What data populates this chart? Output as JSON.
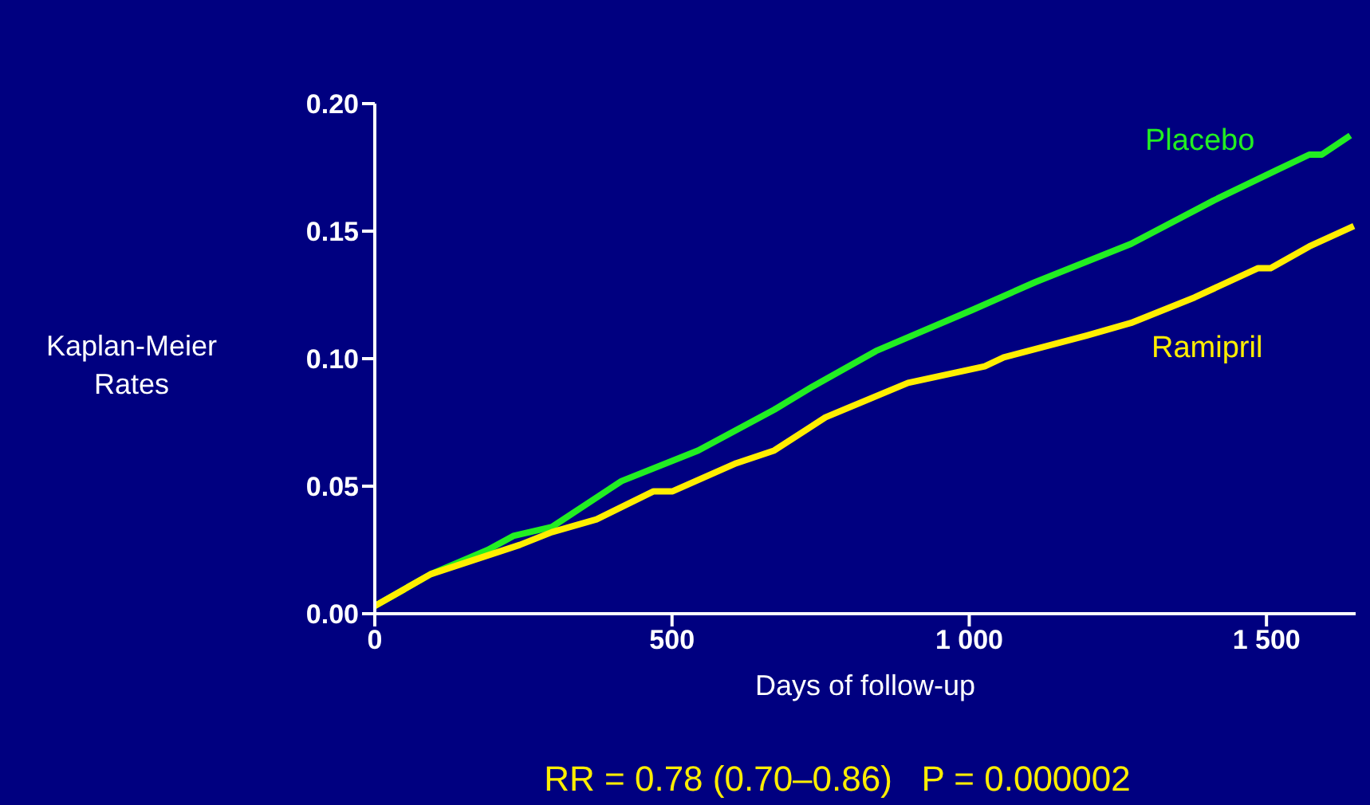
{
  "chart_data": {
    "type": "line",
    "xlabel": "Days of follow-up",
    "ylabel": "Kaplan-Meier Rates",
    "annotations": [
      "RR = 0.78 (0.70–0.86)   P = 0.000002"
    ],
    "xlim": [
      0,
      1650
    ],
    "xticks": [
      0,
      500,
      {
        "value": 1000,
        "label": "1 000"
      },
      {
        "value": 1500,
        "label": "1 500"
      }
    ],
    "ylim": [
      0,
      0.2
    ],
    "yticks": [
      {
        "value": 0,
        "label": "0.00"
      },
      {
        "value": 0.05,
        "label": "0.05"
      },
      {
        "value": 0.1,
        "label": "0.10"
      },
      {
        "value": 0.15,
        "label": "0.15"
      },
      {
        "value": 0.2,
        "label": "0.20"
      }
    ],
    "grid": false,
    "legend": false,
    "marker": "none",
    "line_style": "solid",
    "series": [
      {
        "name": "Placebo",
        "color": "#22ee22",
        "x": [
          0,
          94,
          190,
          233,
          298,
          415,
          544,
          672,
          736,
          843,
          1004,
          1111,
          1272,
          1411,
          1518,
          1572,
          1593,
          1641
        ],
        "values": [
          0.003,
          0.0155,
          0.025,
          0.0305,
          0.034,
          0.052,
          0.064,
          0.08,
          0.089,
          0.103,
          0.119,
          0.13,
          0.145,
          0.162,
          0.174,
          0.18,
          0.18,
          0.1875
        ]
      },
      {
        "name": "Ramipril",
        "color": "#ffee00",
        "x": [
          0,
          94,
          244,
          298,
          373,
          469,
          501,
          608,
          672,
          758,
          897,
          1026,
          1058,
          1197,
          1272,
          1379,
          1486,
          1507,
          1572,
          1647
        ],
        "values": [
          0.003,
          0.0155,
          0.027,
          0.032,
          0.037,
          0.048,
          0.048,
          0.059,
          0.064,
          0.077,
          0.0905,
          0.097,
          0.1005,
          0.109,
          0.114,
          0.124,
          0.1355,
          0.1355,
          0.144,
          0.152
        ]
      }
    ]
  }
}
